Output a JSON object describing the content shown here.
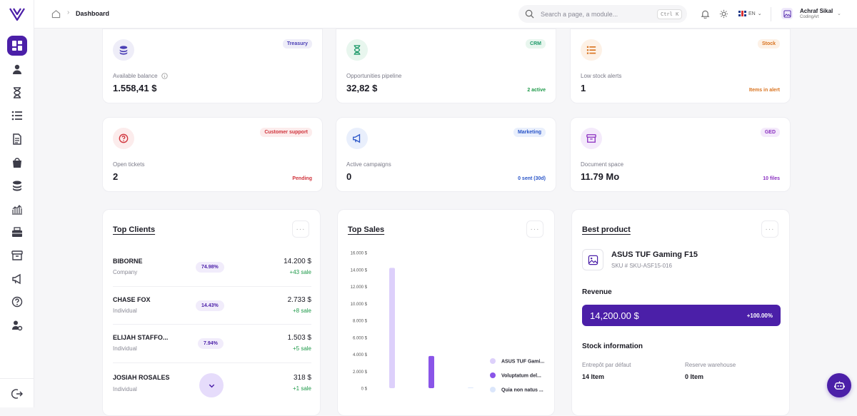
{
  "topbar": {
    "breadcrumb": "Dashboard",
    "search_placeholder": "Search a page, a module...",
    "search_shortcut": "Ctrl K",
    "language": "EN",
    "user_name": "Achraf Sikal",
    "user_company": "CodingArt"
  },
  "kpis": [
    {
      "tag": "Treasury",
      "label": "Available balance",
      "value": "1.558,41 $",
      "sub": "",
      "icon": "coins-icon",
      "color": "#4b3fb5"
    },
    {
      "tag": "CRM",
      "label": "Opportunities pipeline",
      "value": "32,82 $",
      "sub": "2 active",
      "icon": "hourglass-icon",
      "color": "#1f9a6a"
    },
    {
      "tag": "Stock",
      "label": "Low stock alerts",
      "value": "1",
      "sub": "Items in alert",
      "icon": "list-icon",
      "color": "#d9731f"
    },
    {
      "tag": "Customer support",
      "label": "Open tickets",
      "value": "2",
      "sub": "Pending",
      "icon": "help-circle-icon",
      "color": "#d0343c"
    },
    {
      "tag": "Marketing",
      "label": "Active campaigns",
      "value": "0",
      "sub": "0 sent (30d)",
      "icon": "megaphone-icon",
      "color": "#2a55c8"
    },
    {
      "tag": "GED",
      "label": "Document space",
      "value": "11.79 Mo",
      "sub": "10 files",
      "icon": "archive-icon",
      "color": "#8a2fc0"
    }
  ],
  "top_clients": {
    "title": "Top Clients",
    "rows": [
      {
        "name": "BIBORNE",
        "type": "Company",
        "pct": "74.98%",
        "amount": "14.200 $",
        "sale": "+43 sale"
      },
      {
        "name": "CHASE FOX",
        "type": "Individual",
        "pct": "14.43%",
        "amount": "2.733 $",
        "sale": "+8 sale"
      },
      {
        "name": "ELIJAH STAFFO...",
        "type": "Individual",
        "pct": "7.94%",
        "amount": "1.503 $",
        "sale": "+5 sale"
      },
      {
        "name": "JOSIAH ROSALES",
        "type": "Individual",
        "pct": "",
        "amount": "318 $",
        "sale": "+1 sale"
      }
    ]
  },
  "top_sales": {
    "title": "Top Sales"
  },
  "chart_data": {
    "type": "bar",
    "title": "Top Sales",
    "ylim": [
      0,
      16000
    ],
    "yticks": [
      "0 $",
      "2.000 $",
      "4.000 $",
      "6.000 $",
      "8.000 $",
      "10.000 $",
      "12.000 $",
      "14.000 $",
      "16.000 $"
    ],
    "series": [
      {
        "name": "ASUS TUF Gami...",
        "value": 14200,
        "color": "#ddd0fb"
      },
      {
        "name": "Voluptatum del...",
        "value": 3800,
        "color": "#8a55e8"
      },
      {
        "name": "Quia non natus ...",
        "value": 60,
        "color": "#dbe6fb"
      }
    ],
    "legend": "right"
  },
  "best_product": {
    "title": "Best product",
    "name": "ASUS TUF Gaming F15",
    "sku": "SKU # SKU-ASF15-016",
    "revenue_label": "Revenue",
    "revenue": "14,200.00 $",
    "revenue_pct": "+100.00%",
    "stock_title": "Stock information",
    "stock": [
      {
        "label": "Entrepôt par défaut",
        "value": "14 Item"
      },
      {
        "label": "Reserve warehouse",
        "value": "0 Item"
      }
    ]
  },
  "colors": {
    "accent": "#4b1fa8",
    "success": "#1f9a4a"
  }
}
